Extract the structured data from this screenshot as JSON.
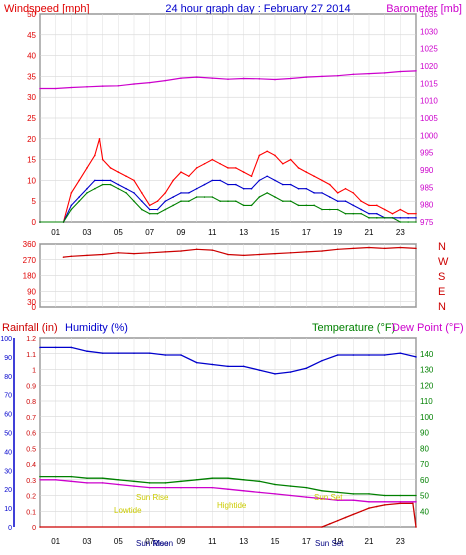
{
  "page": {
    "title": "24 hour graph day : February 27 2014"
  },
  "chart_data": [
    {
      "type": "line",
      "panel": "wind-barometer",
      "title": "24 hour graph day : February 27 2014",
      "left_label": "Windspeed [mph]",
      "right_label": "Barometer [mb]",
      "y_left": {
        "range": [
          0,
          50
        ],
        "ticks": [
          0,
          5,
          10,
          15,
          20,
          25,
          30,
          35,
          40,
          45,
          50
        ],
        "color": "#e00000"
      },
      "y_right": {
        "range": [
          975,
          1035
        ],
        "ticks": [
          975,
          980,
          985,
          990,
          995,
          1000,
          1005,
          1010,
          1015,
          1020,
          1025,
          1030,
          1035
        ],
        "color": "#cc00cc"
      },
      "x": {
        "range": [
          0,
          24
        ],
        "ticks": [
          "01",
          "03",
          "05",
          "07",
          "09",
          "11",
          "13",
          "15",
          "17",
          "19",
          "21",
          "23"
        ],
        "tick_hours": [
          1,
          3,
          5,
          7,
          9,
          11,
          13,
          15,
          17,
          19,
          21,
          23
        ]
      },
      "series": [
        {
          "name": "Windspeed gust",
          "color": "#ff0000",
          "hours": [
            0,
            1.5,
            2,
            2.5,
            3,
            3.5,
            3.8,
            4,
            4.5,
            5,
            5.5,
            6,
            6.5,
            7,
            7.5,
            8,
            8.5,
            9,
            9.5,
            10,
            10.5,
            11,
            11.5,
            12,
            12.5,
            13,
            13.5,
            14,
            14.5,
            15,
            15.5,
            16,
            16.5,
            17,
            17.5,
            18,
            18.5,
            19,
            19.5,
            20,
            20.5,
            21,
            21.5,
            22,
            22.5,
            23,
            23.5,
            24
          ],
          "values": [
            0,
            0,
            7,
            10,
            13,
            16,
            20,
            15,
            13,
            12,
            11,
            10,
            7,
            4,
            5,
            7,
            10,
            12,
            11,
            13,
            14,
            15,
            14,
            13,
            13,
            12,
            11,
            16,
            17,
            16,
            14,
            15,
            13,
            12,
            11,
            10,
            9,
            7,
            8,
            7,
            5,
            4,
            4,
            3,
            2,
            3,
            2,
            2
          ]
        },
        {
          "name": "Windspeed average",
          "color": "#0000cc",
          "hours": [
            0,
            1.5,
            2,
            2.5,
            3,
            3.5,
            4,
            4.5,
            5,
            5.5,
            6,
            6.5,
            7,
            7.5,
            8,
            8.5,
            9,
            9.5,
            10,
            10.5,
            11,
            11.5,
            12,
            12.5,
            13,
            13.5,
            14,
            14.5,
            15,
            15.5,
            16,
            16.5,
            17,
            17.5,
            18,
            18.5,
            19,
            19.5,
            20,
            20.5,
            21,
            21.5,
            22,
            22.5,
            23,
            23.5,
            24
          ],
          "values": [
            0,
            0,
            4,
            6,
            8,
            10,
            10,
            10,
            9,
            8,
            7,
            5,
            3,
            3,
            5,
            6,
            7,
            7,
            8,
            9,
            10,
            10,
            9,
            9,
            8,
            8,
            10,
            11,
            10,
            9,
            9,
            8,
            8,
            7,
            7,
            6,
            5,
            5,
            4,
            3,
            2,
            2,
            1,
            1,
            1,
            1,
            1
          ]
        },
        {
          "name": "Wind speed (green)",
          "color": "#008000",
          "hours": [
            0,
            1.5,
            2,
            2.5,
            3,
            3.5,
            4,
            4.5,
            5,
            5.5,
            6,
            6.5,
            7,
            7.5,
            8,
            8.5,
            9,
            9.5,
            10,
            10.5,
            11,
            11.5,
            12,
            12.5,
            13,
            13.5,
            14,
            14.5,
            15,
            15.5,
            16,
            16.5,
            17,
            17.5,
            18,
            18.5,
            19,
            19.5,
            20,
            20.5,
            21,
            21.5,
            22,
            22.5,
            23,
            23.5,
            24
          ],
          "values": [
            0,
            0,
            3,
            5,
            7,
            8,
            9,
            9,
            8,
            7,
            5,
            3,
            2,
            2,
            3,
            4,
            5,
            5,
            6,
            6,
            6,
            5,
            5,
            5,
            4,
            4,
            6,
            7,
            6,
            5,
            5,
            4,
            4,
            4,
            3,
            3,
            3,
            2,
            2,
            2,
            1,
            1,
            1,
            1,
            0,
            0,
            0
          ]
        },
        {
          "name": "Barometer",
          "color": "#cc00cc",
          "hours": [
            0,
            1,
            2,
            3,
            4,
            5,
            6,
            7,
            8,
            9,
            10,
            11,
            12,
            13,
            14,
            15,
            16,
            17,
            18,
            19,
            20,
            21,
            22,
            23,
            24
          ],
          "values": [
            1013.5,
            1013.5,
            1013.8,
            1014,
            1014.2,
            1014.3,
            1014.8,
            1015.2,
            1015.8,
            1016.5,
            1016.8,
            1016.5,
            1016.2,
            1016.4,
            1016.3,
            1016.1,
            1016.4,
            1016.8,
            1017,
            1017.2,
            1017.6,
            1017.8,
            1018,
            1018.4,
            1018.6
          ]
        }
      ]
    },
    {
      "type": "scatter",
      "panel": "wind-direction",
      "y_left": {
        "range": [
          0,
          360
        ],
        "ticks": [
          0,
          30,
          90,
          180,
          270,
          360
        ]
      },
      "y_right_labels": [
        "N",
        "W",
        "S",
        "E",
        "N"
      ],
      "series": [
        {
          "name": "Wind direction",
          "color": "#cc0000",
          "hours": [
            1.5,
            2,
            3,
            4,
            5,
            6,
            7,
            8,
            9,
            10,
            11,
            12,
            13,
            14,
            15,
            16,
            17,
            18,
            19,
            20,
            21,
            22,
            23,
            24
          ],
          "values": [
            285,
            290,
            295,
            300,
            310,
            305,
            310,
            315,
            320,
            330,
            325,
            300,
            295,
            300,
            305,
            310,
            315,
            320,
            330,
            335,
            340,
            335,
            340,
            335
          ]
        }
      ]
    },
    {
      "type": "line",
      "panel": "rain-humidity-temperature",
      "left_label_1": "Rainfall (in)",
      "left_label_2": "Humidity (%)",
      "right_label_1": "Temperature (°F)",
      "right_label_2": "Dew Point (°F)",
      "y_rain": {
        "range": [
          0,
          1.2
        ],
        "ticks": [
          0,
          0.1,
          0.2,
          0.3,
          0.4,
          0.5,
          0.6,
          0.7,
          0.8,
          0.9,
          1,
          1.1,
          1.2
        ]
      },
      "y_humidity": {
        "range": [
          0,
          100
        ],
        "ticks": [
          0,
          10,
          20,
          30,
          40,
          50,
          60,
          70,
          80,
          90,
          100
        ]
      },
      "y_temp": {
        "range": [
          30,
          150
        ],
        "ticks": [
          40,
          50,
          60,
          70,
          80,
          90,
          100,
          110,
          120,
          130,
          140
        ]
      },
      "annotations": [
        "Sun Rise",
        "Lowtide",
        "Hightide",
        "Sun Set",
        "Sun Rise",
        "Moon",
        "Sun Set"
      ],
      "series": [
        {
          "name": "Humidity",
          "color": "#0000cc",
          "hours": [
            0,
            1,
            2,
            3,
            4,
            5,
            6,
            7,
            8,
            9,
            10,
            11,
            12,
            13,
            14,
            15,
            16,
            17,
            18,
            19,
            20,
            21,
            22,
            23,
            24
          ],
          "values": [
            95,
            95,
            95,
            93,
            92,
            92,
            92,
            92,
            91,
            91,
            87,
            86,
            85,
            85,
            83,
            81,
            82,
            84,
            88,
            91,
            91,
            91,
            91,
            92,
            90
          ]
        },
        {
          "name": "Temperature",
          "color": "#008000",
          "hours": [
            0,
            1,
            2,
            3,
            4,
            5,
            6,
            7,
            8,
            9,
            10,
            11,
            12,
            13,
            14,
            15,
            16,
            17,
            18,
            19,
            20,
            21,
            22,
            23,
            24
          ],
          "values": [
            62,
            62,
            62,
            61,
            61,
            60,
            59,
            58,
            58,
            59,
            60,
            61,
            61,
            60,
            59,
            57,
            56,
            55,
            53,
            52,
            51,
            51,
            50,
            50,
            50
          ]
        },
        {
          "name": "Dew Point",
          "color": "#cc00cc",
          "hours": [
            0,
            1,
            2,
            3,
            4,
            5,
            6,
            7,
            8,
            9,
            10,
            11,
            12,
            13,
            14,
            15,
            16,
            17,
            18,
            19,
            20,
            21,
            22,
            23,
            24
          ],
          "values": [
            60,
            60,
            59,
            58,
            58,
            57,
            56,
            55,
            55,
            55,
            55,
            55,
            54,
            53,
            52,
            51,
            50,
            49,
            48,
            47,
            47,
            46,
            46,
            46,
            46
          ]
        },
        {
          "name": "Rainfall",
          "color": "#cc0000",
          "hours": [
            0,
            18,
            18.5,
            19,
            19.5,
            20,
            20.5,
            21,
            21.5,
            22,
            23,
            23.8,
            24
          ],
          "values": [
            0,
            0,
            0.02,
            0.04,
            0.06,
            0.08,
            0.1,
            0.12,
            0.13,
            0.14,
            0.15,
            0.15,
            0
          ]
        }
      ]
    }
  ]
}
